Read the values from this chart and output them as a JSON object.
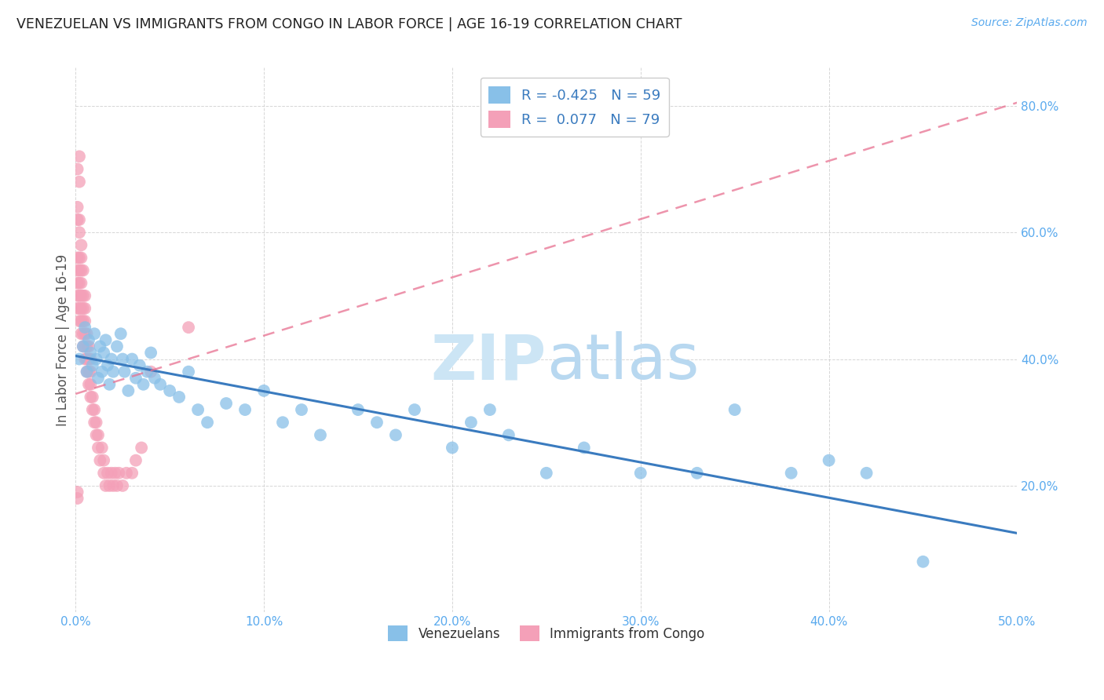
{
  "title": "VENEZUELAN VS IMMIGRANTS FROM CONGO IN LABOR FORCE | AGE 16-19 CORRELATION CHART",
  "source": "Source: ZipAtlas.com",
  "ylabel": "In Labor Force | Age 16-19",
  "xlim": [
    0.0,
    0.5
  ],
  "ylim": [
    0.0,
    0.86
  ],
  "xticks": [
    0.0,
    0.1,
    0.2,
    0.3,
    0.4,
    0.5
  ],
  "yticks": [
    0.0,
    0.2,
    0.4,
    0.6,
    0.8
  ],
  "xticklabels": [
    "0.0%",
    "10.0%",
    "20.0%",
    "30.0%",
    "40.0%",
    "50.0%"
  ],
  "yticklabels_right": [
    "",
    "20.0%",
    "40.0%",
    "60.0%",
    "80.0%"
  ],
  "legend_R_blue": "-0.425",
  "legend_N_blue": "59",
  "legend_R_pink": "0.077",
  "legend_N_pink": "79",
  "blue_color": "#88c0e8",
  "pink_color": "#f4a0b8",
  "blue_line_color": "#3a7bbf",
  "pink_line_color": "#e87090",
  "tick_color": "#5aaaee",
  "watermark_color": "#cce5f5",
  "venezuelans_x": [
    0.002,
    0.004,
    0.005,
    0.006,
    0.007,
    0.008,
    0.009,
    0.01,
    0.011,
    0.012,
    0.013,
    0.014,
    0.015,
    0.016,
    0.017,
    0.018,
    0.019,
    0.02,
    0.022,
    0.024,
    0.025,
    0.026,
    0.028,
    0.03,
    0.032,
    0.034,
    0.036,
    0.038,
    0.04,
    0.042,
    0.045,
    0.05,
    0.055,
    0.06,
    0.065,
    0.07,
    0.08,
    0.09,
    0.1,
    0.11,
    0.12,
    0.13,
    0.15,
    0.16,
    0.17,
    0.18,
    0.2,
    0.21,
    0.22,
    0.23,
    0.25,
    0.27,
    0.3,
    0.33,
    0.35,
    0.38,
    0.4,
    0.42,
    0.45
  ],
  "venezuelans_y": [
    0.4,
    0.42,
    0.45,
    0.38,
    0.43,
    0.41,
    0.39,
    0.44,
    0.4,
    0.37,
    0.42,
    0.38,
    0.41,
    0.43,
    0.39,
    0.36,
    0.4,
    0.38,
    0.42,
    0.44,
    0.4,
    0.38,
    0.35,
    0.4,
    0.37,
    0.39,
    0.36,
    0.38,
    0.41,
    0.37,
    0.36,
    0.35,
    0.34,
    0.38,
    0.32,
    0.3,
    0.33,
    0.32,
    0.35,
    0.3,
    0.32,
    0.28,
    0.32,
    0.3,
    0.28,
    0.32,
    0.26,
    0.3,
    0.32,
    0.28,
    0.22,
    0.26,
    0.22,
    0.22,
    0.32,
    0.22,
    0.24,
    0.22,
    0.08
  ],
  "congo_x": [
    0.001,
    0.001,
    0.001,
    0.002,
    0.002,
    0.002,
    0.002,
    0.003,
    0.003,
    0.003,
    0.003,
    0.003,
    0.004,
    0.004,
    0.004,
    0.004,
    0.005,
    0.005,
    0.005,
    0.005,
    0.006,
    0.006,
    0.006,
    0.007,
    0.007,
    0.007,
    0.008,
    0.008,
    0.008,
    0.009,
    0.009,
    0.01,
    0.01,
    0.011,
    0.011,
    0.012,
    0.012,
    0.013,
    0.014,
    0.015,
    0.015,
    0.016,
    0.017,
    0.018,
    0.019,
    0.02,
    0.021,
    0.022,
    0.023,
    0.025,
    0.027,
    0.03,
    0.032,
    0.035,
    0.001,
    0.001,
    0.002,
    0.002,
    0.003,
    0.004,
    0.005,
    0.006,
    0.007,
    0.008,
    0.001,
    0.001,
    0.002,
    0.002,
    0.003,
    0.003,
    0.004,
    0.005,
    0.04,
    0.001,
    0.002,
    0.06,
    0.002,
    0.001,
    0.001
  ],
  "congo_y": [
    0.48,
    0.5,
    0.52,
    0.46,
    0.48,
    0.5,
    0.52,
    0.44,
    0.46,
    0.48,
    0.5,
    0.52,
    0.42,
    0.44,
    0.46,
    0.48,
    0.4,
    0.42,
    0.44,
    0.46,
    0.38,
    0.4,
    0.42,
    0.36,
    0.38,
    0.4,
    0.34,
    0.36,
    0.38,
    0.32,
    0.34,
    0.3,
    0.32,
    0.28,
    0.3,
    0.26,
    0.28,
    0.24,
    0.26,
    0.22,
    0.24,
    0.2,
    0.22,
    0.2,
    0.22,
    0.2,
    0.22,
    0.2,
    0.22,
    0.2,
    0.22,
    0.22,
    0.24,
    0.26,
    0.54,
    0.56,
    0.54,
    0.56,
    0.54,
    0.5,
    0.48,
    0.44,
    0.42,
    0.4,
    0.62,
    0.64,
    0.6,
    0.62,
    0.58,
    0.56,
    0.54,
    0.5,
    0.38,
    0.7,
    0.68,
    0.45,
    0.72,
    0.18,
    0.19
  ],
  "blue_line_x": [
    0.0,
    0.5
  ],
  "blue_line_y": [
    0.405,
    0.125
  ],
  "pink_line_x": [
    0.0,
    0.5
  ],
  "pink_line_y": [
    0.345,
    0.805
  ]
}
